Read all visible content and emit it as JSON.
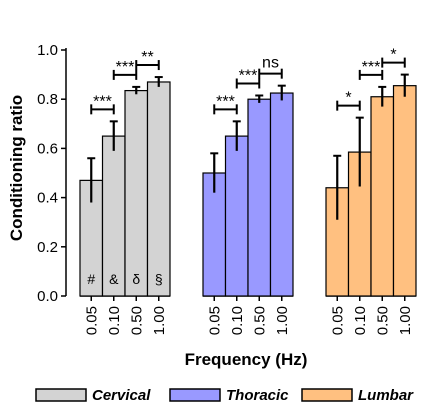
{
  "chart_data": {
    "type": "bar",
    "ylabel": "Conditioning ratio",
    "xlabel": "Frequency (Hz)",
    "ylim": [
      0,
      1.0
    ],
    "yticks": [
      "0.0",
      "0.2",
      "0.4",
      "0.6",
      "0.8",
      "1.0"
    ],
    "categories": [
      "0.05",
      "0.10",
      "0.50",
      "1.00"
    ],
    "legend_position": "bottom",
    "groups": [
      {
        "name": "Cervical",
        "color": "#d3d3d3",
        "values": [
          0.47,
          0.65,
          0.835,
          0.87
        ],
        "errors": [
          0.09,
          0.06,
          0.015,
          0.02
        ],
        "bar_labels": [
          "#",
          "&",
          "δ",
          "§"
        ],
        "comparisons": [
          {
            "from": 0,
            "to": 1,
            "label": "***"
          },
          {
            "from": 1,
            "to": 2,
            "label": "***"
          },
          {
            "from": 2,
            "to": 3,
            "label": "**"
          }
        ]
      },
      {
        "name": "Thoracic",
        "color": "#9999ff",
        "values": [
          0.5,
          0.65,
          0.8,
          0.825
        ],
        "errors": [
          0.08,
          0.06,
          0.015,
          0.03
        ],
        "bar_labels": [],
        "comparisons": [
          {
            "from": 0,
            "to": 1,
            "label": "***"
          },
          {
            "from": 1,
            "to": 2,
            "label": "***"
          },
          {
            "from": 2,
            "to": 3,
            "label": "ns"
          }
        ]
      },
      {
        "name": "Lumbar",
        "color": "#ffc080",
        "values": [
          0.44,
          0.585,
          0.81,
          0.855
        ],
        "errors": [
          0.13,
          0.14,
          0.04,
          0.045
        ],
        "bar_labels": [],
        "comparisons": [
          {
            "from": 0,
            "to": 1,
            "label": "*"
          },
          {
            "from": 1,
            "to": 2,
            "label": "***"
          },
          {
            "from": 2,
            "to": 3,
            "label": "*"
          }
        ]
      }
    ]
  }
}
